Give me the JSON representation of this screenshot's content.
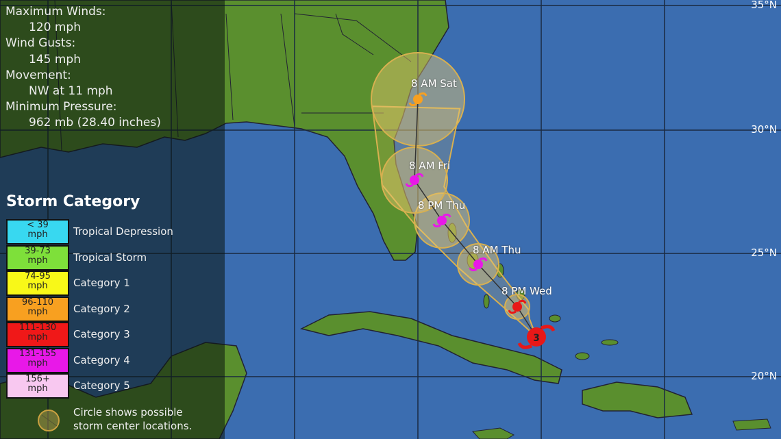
{
  "info": {
    "max_winds_label": "Maximum Winds:",
    "max_winds": "120 mph",
    "gusts_label": "Wind Gusts:",
    "gusts": "145 mph",
    "movement_label": "Movement:",
    "movement": "NW at 11 mph",
    "pressure_label": "Minimum Pressure:",
    "pressure": "962 mb (28.40 inches)"
  },
  "legend": {
    "title": "Storm Category",
    "items": [
      {
        "range": "< 39",
        "unit": "mph",
        "label": "Tropical Depression",
        "color": "#38d8f0"
      },
      {
        "range": "39-73",
        "unit": "mph",
        "label": "Tropical Storm",
        "color": "#7ee03a"
      },
      {
        "range": "74-95",
        "unit": "mph",
        "label": "Category 1",
        "color": "#f8f818"
      },
      {
        "range": "96-110",
        "unit": "mph",
        "label": "Category 2",
        "color": "#f8a020"
      },
      {
        "range": "111-130",
        "unit": "mph",
        "label": "Category 3",
        "color": "#f01818"
      },
      {
        "range": "131-155",
        "unit": "mph",
        "label": "Category 4",
        "color": "#e818e8"
      },
      {
        "range": "156+",
        "unit": "mph",
        "label": "Category 5",
        "color": "#f8c8f0"
      }
    ],
    "circle_note_1": "Circle shows possible",
    "circle_note_2": "storm center locations."
  },
  "latitudes": [
    "35°N",
    "30°N",
    "25°N",
    "20°N"
  ],
  "current_storm": {
    "category": "3",
    "color": "#e81818"
  },
  "forecast": [
    {
      "label": "8 PM Wed",
      "category": 3,
      "color": "#e81818"
    },
    {
      "label": "8 AM Thu",
      "category": 4,
      "color": "#e818e8"
    },
    {
      "label": "8 PM Thu",
      "category": 4,
      "color": "#e818e8"
    },
    {
      "label": "8 AM Fri",
      "category": 4,
      "color": "#e818e8"
    },
    {
      "label": "8 AM Sat",
      "category": 2,
      "color": "#f8a020"
    }
  ],
  "colors": {
    "ocean": "#3b6db0",
    "land": "#5a8f2e",
    "cone": "#e8c060"
  }
}
